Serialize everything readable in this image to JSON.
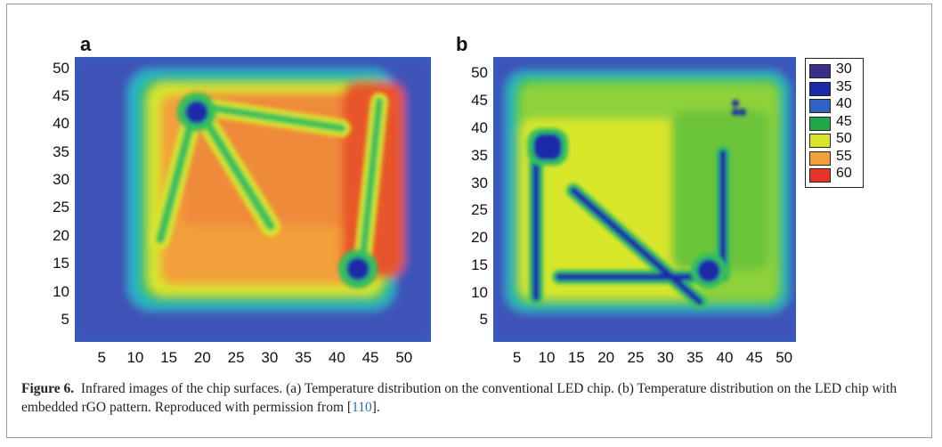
{
  "figure": {
    "caption": {
      "label": "Figure 6.",
      "text": "Infrared images of the chip surfaces. (a) Temperature distribution on the conventional LED chip. (b) Temperature distribution on the LED chip with embedded rGO pattern. Reproduced with permission from [",
      "ref": "110",
      "end": "]."
    }
  },
  "chart_data": [
    {
      "type": "heatmap",
      "panel": "a",
      "x_ticks": [
        "5",
        "10",
        "15",
        "20",
        "25",
        "30",
        "35",
        "40",
        "45",
        "50"
      ],
      "y_ticks": [
        "50",
        "45",
        "40",
        "35",
        "30",
        "25",
        "20",
        "15",
        "10",
        "5"
      ],
      "xlim": [
        1,
        54
      ],
      "ylim": [
        1,
        52
      ],
      "colorbar": false,
      "features": "hot square chip (~50-55, up to 60 at top-right); ~45 cooler rGO-free dividing lines; 30-35 pads near (17,43) and (39,14)"
    },
    {
      "type": "heatmap",
      "panel": "b",
      "x_ticks": [
        "5",
        "10",
        "15",
        "20",
        "25",
        "30",
        "35",
        "40",
        "45",
        "50"
      ],
      "y_ticks": [
        "50",
        "45",
        "40",
        "35",
        "30",
        "25",
        "20",
        "15",
        "10",
        "5"
      ],
      "xlim": [
        1,
        52
      ],
      "ylim": [
        1,
        53
      ],
      "colorbar": true,
      "features": "cooler chip (~45-50); embedded rGO pattern at 30-35 including pad near (11,39) and (38,15)"
    }
  ],
  "legend": {
    "entries": [
      {
        "label": "30",
        "color": "#3a2f8a"
      },
      {
        "label": "35",
        "color": "#1a2aa8"
      },
      {
        "label": "40",
        "color": "#2f63c2"
      },
      {
        "label": "45",
        "color": "#21a84a"
      },
      {
        "label": "50",
        "color": "#d8e62a"
      },
      {
        "label": "55",
        "color": "#f2a03a"
      },
      {
        "label": "60",
        "color": "#e8352a"
      }
    ]
  }
}
